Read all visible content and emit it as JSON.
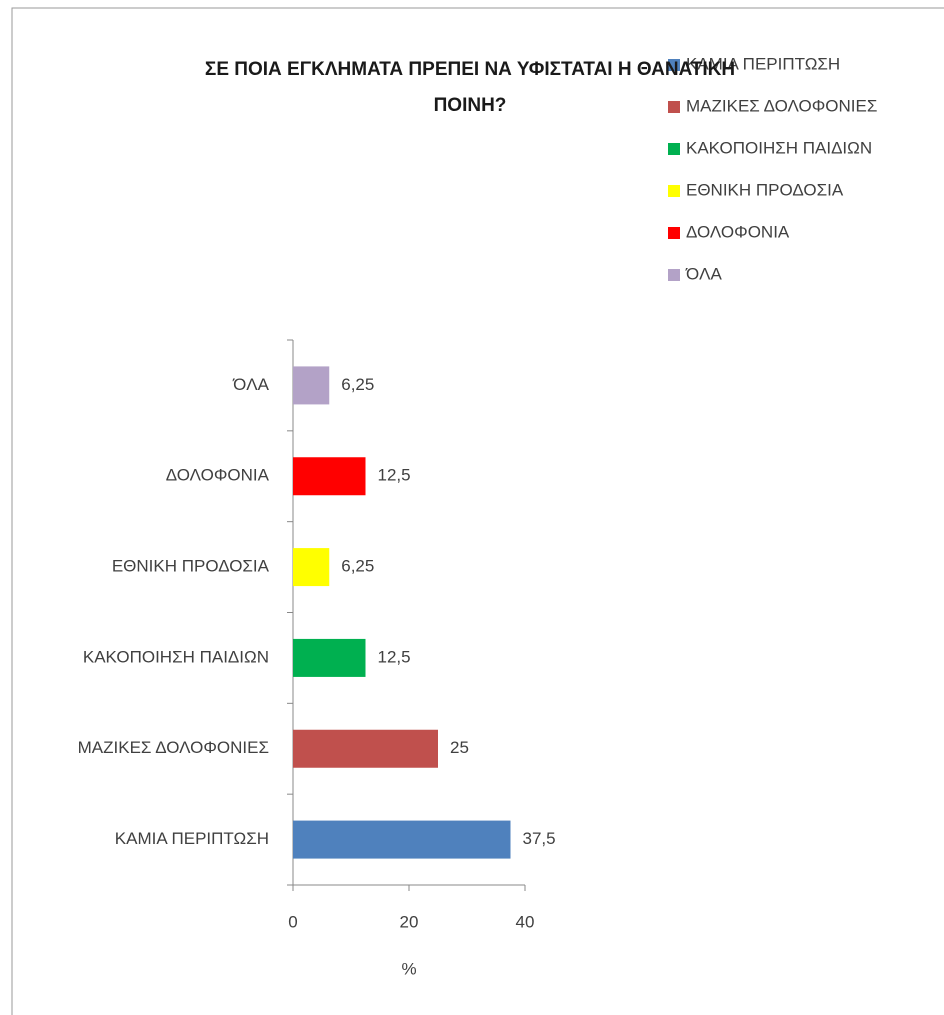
{
  "chart_data": {
    "type": "barh",
    "title": "ΣΕ ΠΟΙΑ ΕΓΚΛΗΜΑΤΑ ΠΡΕΠΕΙ ΝΑ ΥΦΙΣΤΑΤΑΙ Η ΘΑΝΑΤΙΚΗ ΠΟΙΝΗ?",
    "categories": [
      "ΚΑΜΙΑ ΠΕΡΙΠΤΩΣΗ",
      "ΜΑΖΙΚΕΣ ΔΟΛΟΦΟΝΙΕΣ",
      "ΚΑΚΟΠΟΙΗΣΗ ΠΑΙΔΙΩΝ",
      "ΕΘΝΙΚΗ ΠΡΟΔΟΣΙΑ",
      "ΔΟΛΟΦΟΝΙΑ",
      "ΌΛΑ"
    ],
    "values": [
      37.5,
      25,
      12.5,
      6.25,
      12.5,
      6.25
    ],
    "value_labels": [
      "37,5",
      "25",
      "12,5",
      "6,25",
      "12,5",
      "6,25"
    ],
    "colors": [
      "#4f81bd",
      "#c0504d",
      "#00b050",
      "#ffff00",
      "#ff0000",
      "#b3a2c7"
    ],
    "xlabel": "%",
    "xlim": [
      0,
      40
    ],
    "xticks": [
      0,
      20,
      40
    ],
    "legend": "top-right"
  }
}
